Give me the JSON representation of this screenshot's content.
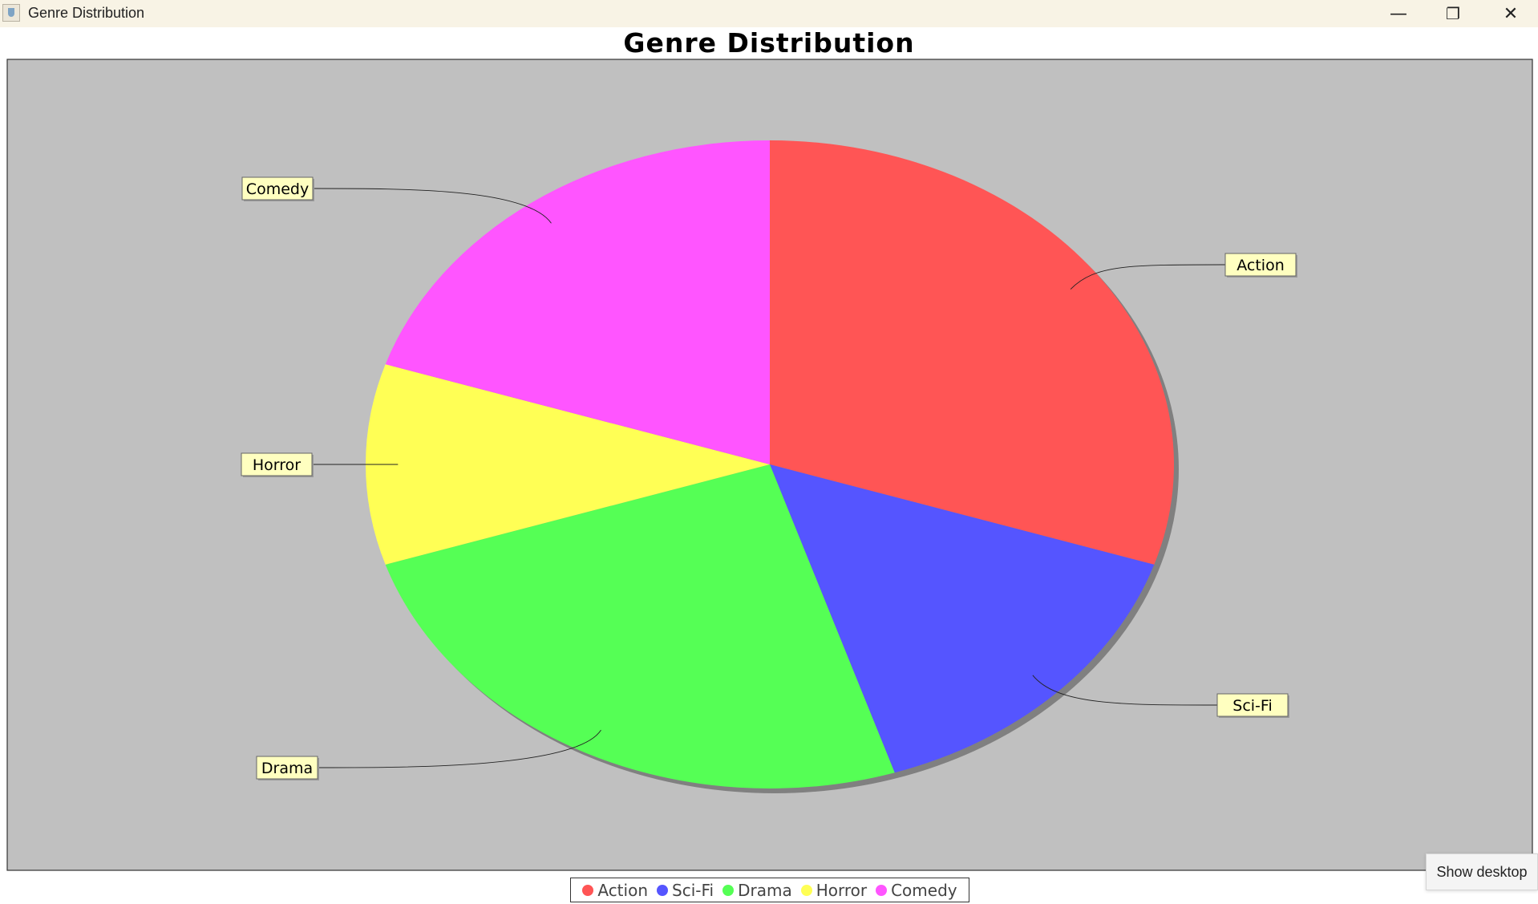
{
  "window": {
    "title": "Genre Distribution",
    "minimize_glyph": "—",
    "restore_glyph": "❐",
    "close_glyph": "✕",
    "app_icon": "java-cup-icon"
  },
  "taskbar": {
    "show_desktop_tooltip": "Show desktop"
  },
  "chart_data": {
    "type": "pie",
    "title": "Genre Distribution",
    "labels": [
      "Action",
      "Sci-Fi",
      "Drama",
      "Horror",
      "Comedy"
    ],
    "values": [
      30,
      15,
      25,
      10,
      20
    ],
    "colors": [
      "#ff5555",
      "#5555ff",
      "#55ff55",
      "#ffff55",
      "#ff55ff"
    ],
    "plot_background": "#c0c0c0",
    "label_background": "#ffffc0",
    "legend": {
      "placement": "bottom",
      "entries": [
        "Action",
        "Sci-Fi",
        "Drama",
        "Horror",
        "Comedy"
      ]
    }
  }
}
